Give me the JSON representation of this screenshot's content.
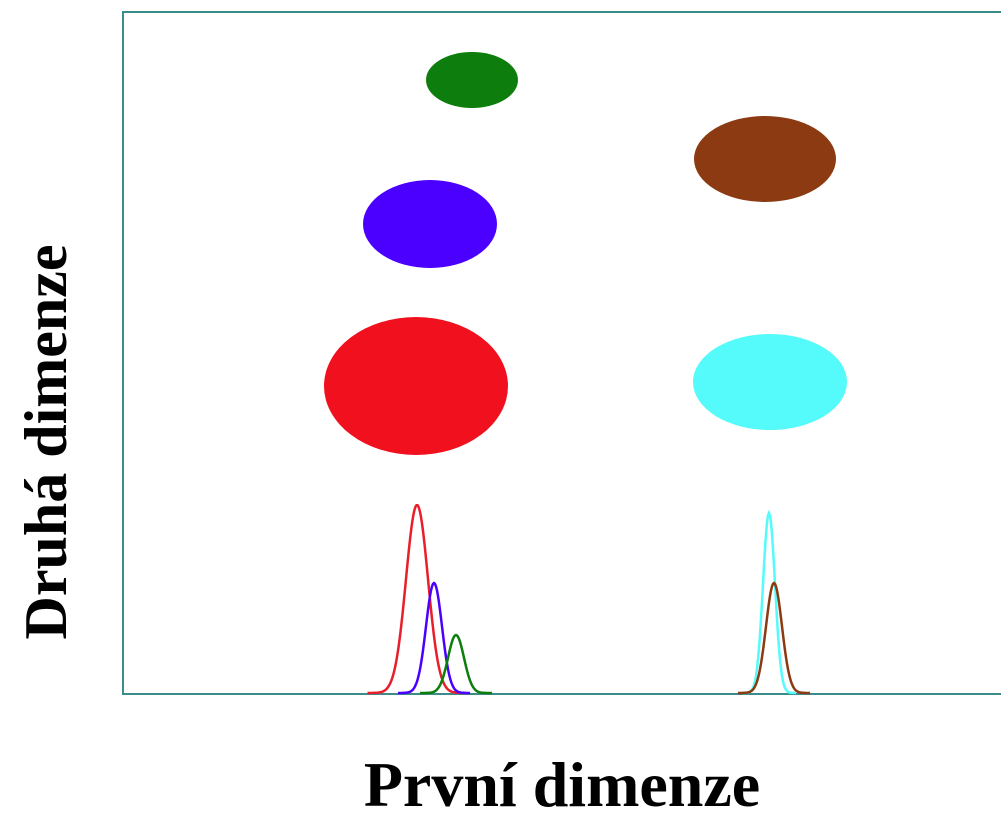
{
  "labels": {
    "x_axis": "První dimenze",
    "y_axis": "Druhá dimenze"
  },
  "colors": {
    "frame": "#3d8c8c",
    "background": "#ffffff"
  },
  "spots": [
    {
      "id": "green",
      "color": "#0d7d0d"
    },
    {
      "id": "brown",
      "color": "#8b3a12"
    },
    {
      "id": "purple",
      "color": "#4b00ff"
    },
    {
      "id": "red",
      "color": "#f0101e"
    },
    {
      "id": "cyan",
      "color": "#55fafa"
    }
  ],
  "peaks": [
    {
      "id": "red",
      "color": "#e81f2a"
    },
    {
      "id": "purple",
      "color": "#4b00ff"
    },
    {
      "id": "green",
      "color": "#0d7d0d"
    },
    {
      "id": "cyan",
      "color": "#55fafa"
    },
    {
      "id": "brown",
      "color": "#8b3a12"
    }
  ]
}
